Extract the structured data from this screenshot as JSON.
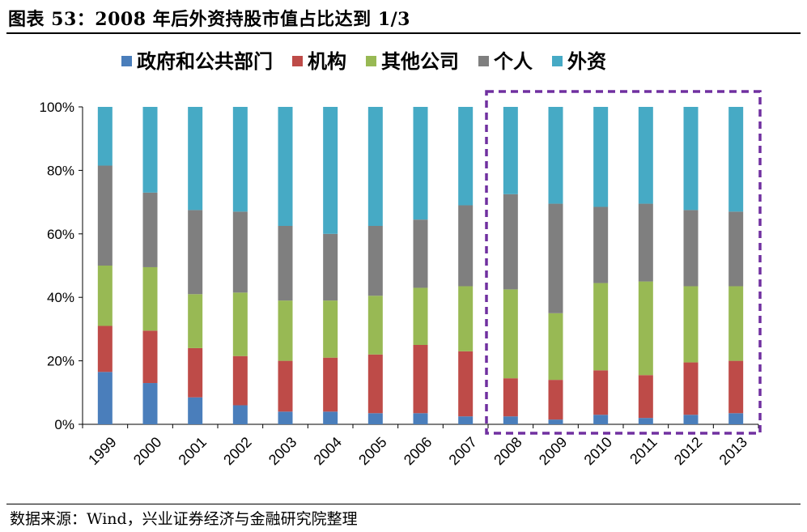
{
  "header": {
    "title": "图表 53：2008 年后外资持股市值占比达到 1/3"
  },
  "footer": {
    "source": "数据来源：Wind，兴业证券经济与金融研究院整理"
  },
  "colors": {
    "government": "#4a7ebb",
    "institution": "#be4b48",
    "other_company": "#98b954",
    "individual": "#7f7f7f",
    "foreign": "#46aac5",
    "highlight": "#7030a0"
  },
  "chart_data": {
    "type": "bar",
    "stacked": true,
    "categories": [
      "1999",
      "2000",
      "2001",
      "2002",
      "2003",
      "2004",
      "2005",
      "2006",
      "2007",
      "2008",
      "2009",
      "2010",
      "2011",
      "2012",
      "2013"
    ],
    "series": [
      {
        "name": "政府和公共部门",
        "color": "#4a7ebb",
        "values": [
          16.5,
          13,
          8.5,
          6,
          4,
          4,
          3.5,
          3.5,
          2.5,
          2.5,
          1.5,
          3,
          2,
          3,
          3.5
        ]
      },
      {
        "name": "机构",
        "color": "#be4b48",
        "values": [
          14.5,
          16.5,
          15.5,
          15.5,
          16,
          17,
          18.5,
          21.5,
          20.5,
          12,
          12.5,
          14,
          13.5,
          16.5,
          16.5
        ]
      },
      {
        "name": "其他公司",
        "color": "#98b954",
        "values": [
          19,
          20,
          17,
          20,
          19,
          18,
          18.5,
          18,
          20.5,
          28,
          21,
          27.5,
          29.5,
          24,
          23.5
        ]
      },
      {
        "name": "个人",
        "color": "#7f7f7f",
        "values": [
          31.5,
          23.5,
          26.5,
          25.5,
          23.5,
          21,
          22,
          21.5,
          25.5,
          30,
          34.5,
          24,
          24.5,
          24,
          23.5
        ]
      },
      {
        "name": "外资",
        "color": "#46aac5",
        "values": [
          18.5,
          27,
          32.5,
          33,
          37.5,
          40,
          37.5,
          35.5,
          31,
          27.5,
          30.5,
          31.5,
          30.5,
          32.5,
          33
        ]
      }
    ],
    "y_ticks": [
      "0%",
      "20%",
      "40%",
      "60%",
      "80%",
      "100%"
    ],
    "ylim": [
      0,
      100
    ],
    "legend_position": "top",
    "grid": false,
    "highlight_range": [
      "2008",
      "2013"
    ]
  }
}
